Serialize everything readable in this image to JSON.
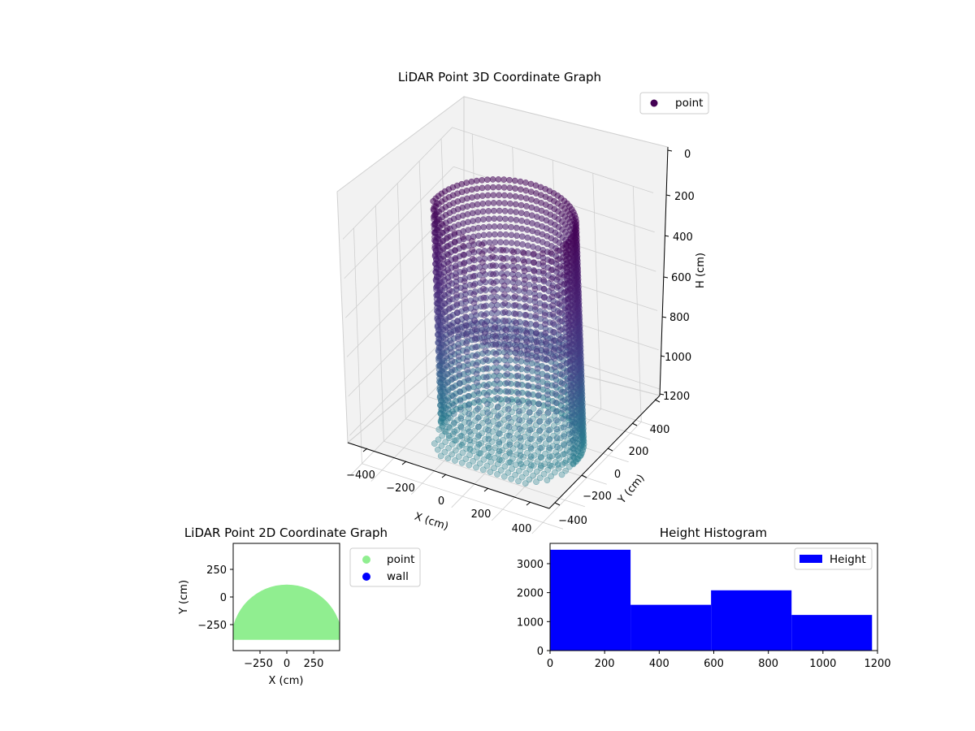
{
  "colors": {
    "pane": "#f2f2f2",
    "pane_edge": "#d0d0d0",
    "grid": "#cfcfcf",
    "point_legend": "#440154",
    "scatter2d_point": "#90ee90",
    "scatter2d_wall": "#0000ff",
    "histogram": "#0000ff"
  },
  "chart_data": [
    {
      "type": "scatter",
      "projection": "3d",
      "title": "LiDAR Point 3D Coordinate Graph",
      "xlabel": "X (cm)",
      "ylabel": "Y (cm)",
      "zlabel": "H (cm)",
      "xlim": [
        -500,
        500
      ],
      "ylim": [
        -500,
        500
      ],
      "zlim": [
        1200,
        0
      ],
      "x_ticks": [
        "−400",
        "−200",
        "0",
        "200",
        "400"
      ],
      "y_ticks": [
        "−400",
        "−200",
        "0",
        "200",
        "400"
      ],
      "z_ticks": [
        "0",
        "200",
        "400",
        "600",
        "800",
        "1000",
        "1200"
      ],
      "colormap": "viridis",
      "legend": {
        "position": "top-right",
        "label": "point"
      },
      "shape": {
        "type": "cylindrical wall (semicircle)",
        "radius": 330,
        "center": [
          0,
          30
        ],
        "height": [
          0,
          1200
        ]
      }
    },
    {
      "type": "scatter",
      "title": "LiDAR Point 2D Coordinate Graph",
      "xlabel": "X (cm)",
      "ylabel": "Y (cm)",
      "xlim": [
        -500,
        500
      ],
      "ylim": [
        -500,
        500
      ],
      "x_ticks": [
        "−250",
        "0",
        "250"
      ],
      "y_ticks": [
        "250",
        "0",
        "−250"
      ],
      "legend": {
        "position": "right, outside",
        "entries": [
          "point",
          "wall"
        ]
      },
      "series": [
        {
          "name": "point",
          "region": "filled half-disc",
          "center": [
            0,
            -400
          ],
          "radius": 520
        },
        {
          "name": "wall",
          "count": 0
        }
      ]
    },
    {
      "type": "bar",
      "title": "Height Histogram",
      "xlabel": "",
      "ylabel": "",
      "xlim": [
        0,
        1200
      ],
      "ylim": [
        0,
        3700
      ],
      "x_ticks": [
        "0",
        "200",
        "400",
        "600",
        "800",
        "1000",
        "1200"
      ],
      "y_ticks": [
        "0",
        "1000",
        "2000",
        "3000"
      ],
      "legend": {
        "position": "top-right",
        "label": "Height"
      },
      "bins": [
        {
          "start": 0,
          "end": 295,
          "count": 3480
        },
        {
          "start": 295,
          "end": 590,
          "count": 1580
        },
        {
          "start": 590,
          "end": 885,
          "count": 2080
        },
        {
          "start": 885,
          "end": 1180,
          "count": 1230
        }
      ]
    }
  ]
}
